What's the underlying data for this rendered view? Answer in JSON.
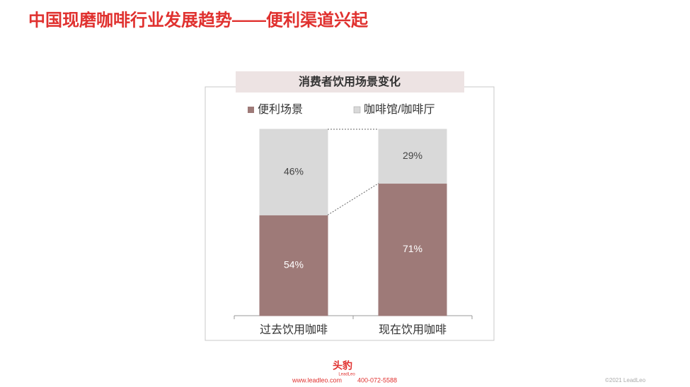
{
  "header": {
    "title": "中国现磨咖啡行业发展趋势——便利渠道兴起"
  },
  "chart_data": {
    "type": "stacked_bar",
    "title": "消费者饮用场景变化",
    "categories": [
      "过去饮用咖啡",
      "现在饮用咖啡"
    ],
    "series": [
      {
        "name": "便利场景",
        "color": "#9e7a78",
        "values": [
          54,
          71
        ],
        "value_labels": [
          "54%",
          "71%"
        ]
      },
      {
        "name": "咖啡馆/咖啡厅",
        "color": "#d9d9d9",
        "values": [
          46,
          29
        ],
        "value_labels": [
          "46%",
          "29%"
        ]
      }
    ],
    "ylim": [
      0,
      100
    ]
  },
  "footer": {
    "logo": "头豹",
    "logo_sub": "LeadLeo",
    "website": "www.leadleo.com",
    "phone": "400-072-5588",
    "copyright": "©2021 LeadLeo"
  }
}
